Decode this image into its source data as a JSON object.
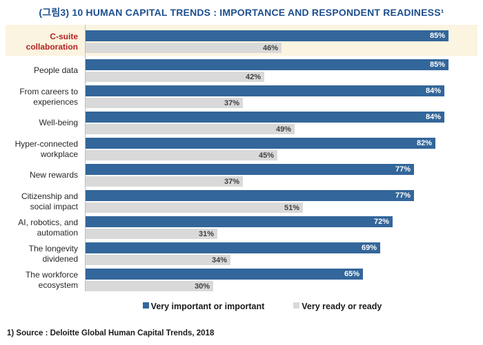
{
  "title": "(그림3) 10 HUMAN CAPITAL TRENDS : IMPORTANCE AND RESPONDENT READINESS¹",
  "chart_data": {
    "type": "bar",
    "orientation": "horizontal",
    "title": "(그림3) 10 HUMAN CAPITAL TRENDS : IMPORTANCE AND RESPONDENT READINESS¹",
    "categories": [
      "C-suite collaboration",
      "People data",
      "From careers to experiences",
      "Well-being",
      "Hyper-connected workplace",
      "New rewards",
      "Citizenship and social impact",
      "AI, robotics, and automation",
      "The longevity dividened",
      "The workforce ecosystem"
    ],
    "series": [
      {
        "name": "Very important or important",
        "color": "#33669A",
        "values": [
          85,
          85,
          84,
          84,
          82,
          77,
          77,
          72,
          69,
          65
        ]
      },
      {
        "name": "Very ready or ready",
        "color": "#D9D9D9",
        "values": [
          46,
          42,
          37,
          49,
          45,
          37,
          51,
          31,
          34,
          30
        ]
      }
    ],
    "value_suffix": "%",
    "xlim": [
      0,
      100
    ],
    "grid": false,
    "legend_position": "bottom",
    "highlighted_category": "C-suite collaboration",
    "highlight_band_color": "#FBF4E0",
    "highlight_label_color": "#B22222",
    "axis_line_color": "#BFBFBF",
    "title_color": "#1C4E8E"
  },
  "source_note": "1) Source : Deloitte Global Human Capital Trends, 2018"
}
